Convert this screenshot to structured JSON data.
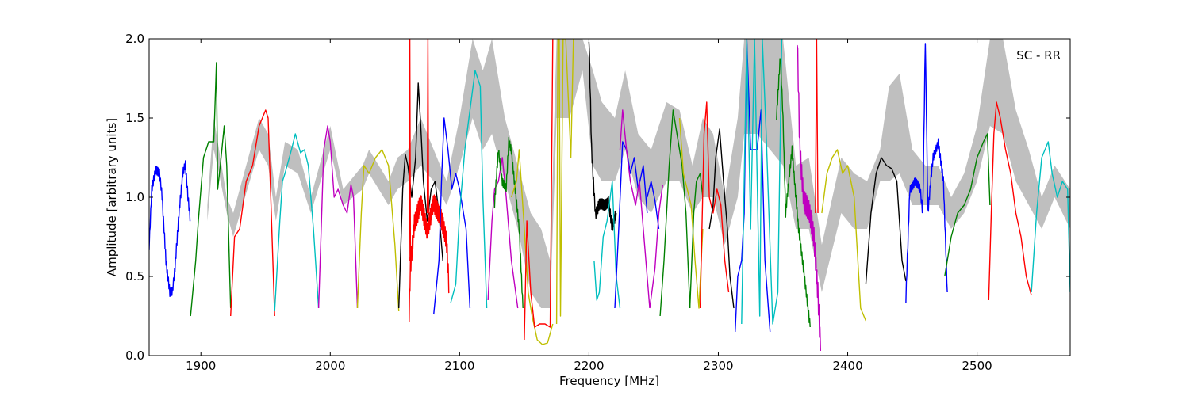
{
  "chart_data": {
    "type": "line",
    "title": "",
    "xlabel": "Frequency [MHz]",
    "ylabel": "Amplitude [arbitrary units]",
    "annotation": "SC - RR",
    "xlim": [
      1860,
      2572
    ],
    "ylim": [
      0.0,
      2.0
    ],
    "xticks": [
      1900,
      2000,
      2100,
      2200,
      2300,
      2400,
      2500
    ],
    "yticks": [
      0.0,
      0.5,
      1.0,
      1.5,
      2.0
    ],
    "xtick_labels": [
      "1900",
      "2000",
      "2100",
      "2200",
      "2300",
      "2400",
      "2500"
    ],
    "ytick_labels": [
      "0.0",
      "0.5",
      "1.0",
      "1.5",
      "2.0"
    ],
    "grid": false,
    "legend": "none",
    "envelope": {
      "color": "#bfbfbf",
      "x": [
        1905,
        1910,
        1914,
        1920,
        1925,
        1945,
        1952,
        1958,
        1965,
        1975,
        1985,
        2000,
        2010,
        2025,
        2030,
        2045,
        2052,
        2060,
        2070,
        2080,
        2090,
        2100,
        2110,
        2118,
        2125,
        2135,
        2145,
        2155,
        2163,
        2170,
        2175,
        2185,
        2195,
        2203,
        2210,
        2220,
        2228,
        2238,
        2248,
        2260,
        2270,
        2280,
        2288,
        2296,
        2305,
        2315,
        2320,
        2330,
        2340,
        2350,
        2360,
        2370,
        2380,
        2395,
        2405,
        2415,
        2425,
        2432,
        2440,
        2450,
        2460,
        2470,
        2480,
        2490,
        2500,
        2510,
        2520,
        2530,
        2540,
        2550,
        2560,
        2572
      ],
      "upper": [
        0.95,
        1.5,
        1.3,
        1.0,
        0.9,
        1.5,
        1.4,
        1.0,
        1.35,
        1.3,
        1.0,
        1.45,
        1.05,
        1.2,
        1.3,
        1.1,
        1.25,
        1.3,
        1.5,
        1.3,
        1.1,
        1.5,
        2.0,
        1.8,
        2.0,
        1.5,
        1.2,
        0.9,
        0.8,
        0.6,
        2.0,
        2.0,
        2.0,
        1.8,
        1.6,
        1.5,
        1.8,
        1.4,
        1.3,
        1.6,
        1.55,
        1.2,
        1.5,
        1.4,
        1.0,
        1.5,
        2.0,
        2.0,
        2.0,
        2.0,
        1.2,
        1.25,
        0.7,
        1.25,
        1.15,
        1.1,
        1.3,
        1.7,
        1.78,
        1.3,
        1.2,
        1.2,
        1.0,
        1.15,
        1.45,
        2.0,
        2.0,
        1.55,
        1.3,
        1.0,
        1.2,
        1.05
      ],
      "lower": [
        0.85,
        1.3,
        1.15,
        0.9,
        0.75,
        1.3,
        1.2,
        0.85,
        1.2,
        1.15,
        0.9,
        1.3,
        0.95,
        1.05,
        1.15,
        0.95,
        1.05,
        1.1,
        1.2,
        1.1,
        0.95,
        1.2,
        1.5,
        1.3,
        1.4,
        1.1,
        0.8,
        0.4,
        0.3,
        0.3,
        1.5,
        1.5,
        1.8,
        1.2,
        1.1,
        1.1,
        1.3,
        1.0,
        0.9,
        1.1,
        1.1,
        0.9,
        1.0,
        1.0,
        0.7,
        1.0,
        1.4,
        1.4,
        1.3,
        1.2,
        0.8,
        0.8,
        0.4,
        0.9,
        0.8,
        0.8,
        1.1,
        1.1,
        1.15,
        0.95,
        0.95,
        0.95,
        0.8,
        0.9,
        1.1,
        1.45,
        1.4,
        1.1,
        0.95,
        0.8,
        1.0,
        0.8
      ]
    },
    "series": [
      {
        "color": "#0000ff",
        "x": [
          1860,
          1862,
          1865,
          1868,
          1870,
          1873,
          1876,
          1878,
          1880,
          1883,
          1886,
          1888,
          1890,
          1892
        ],
        "y": [
          0.68,
          1.05,
          1.18,
          1.15,
          1.0,
          0.6,
          0.4,
          0.4,
          0.55,
          0.9,
          1.15,
          1.2,
          1.0,
          0.85
        ],
        "noise": 0.03
      },
      {
        "color": "#008000",
        "x": [
          1892,
          1896,
          1898,
          1902,
          1906,
          1910,
          1912,
          1913,
          1915,
          1918,
          1920,
          1923
        ],
        "y": [
          0.25,
          0.6,
          0.85,
          1.25,
          1.35,
          1.35,
          1.85,
          1.05,
          1.2,
          1.45,
          1.2,
          0.3
        ]
      },
      {
        "color": "#ff0000",
        "x": [
          1923,
          1926,
          1930,
          1935,
          1940,
          1945,
          1950,
          1952,
          1954,
          1957
        ],
        "y": [
          0.25,
          0.75,
          0.8,
          1.1,
          1.2,
          1.45,
          1.55,
          1.5,
          1.0,
          0.25
        ]
      },
      {
        "color": "#00bfbf",
        "x": [
          1957,
          1961,
          1963,
          1965,
          1970,
          1973,
          1977,
          1980,
          1983,
          1987,
          1991
        ],
        "y": [
          0.28,
          0.85,
          1.1,
          1.15,
          1.3,
          1.4,
          1.28,
          1.3,
          1.2,
          0.8,
          0.3
        ]
      },
      {
        "color": "#bf00bf",
        "x": [
          1991,
          1993,
          1995,
          1998,
          2000,
          2003,
          2006,
          2010,
          2013,
          2016,
          2018,
          2021
        ],
        "y": [
          0.3,
          0.8,
          1.3,
          1.45,
          1.35,
          1.0,
          1.05,
          0.95,
          0.9,
          1.08,
          1.0,
          0.3
        ]
      },
      {
        "color": "#bfbf00",
        "x": [
          2021,
          2024,
          2026,
          2030,
          2035,
          2040,
          2045,
          2050,
          2053
        ],
        "y": [
          0.3,
          0.9,
          1.2,
          1.15,
          1.25,
          1.3,
          1.2,
          0.7,
          0.28
        ]
      },
      {
        "color": "#000000",
        "x": [
          2053,
          2056,
          2058,
          2060,
          2063,
          2066,
          2068,
          2070,
          2072,
          2075,
          2078,
          2081,
          2084,
          2087
        ],
        "y": [
          0.3,
          1.05,
          1.27,
          1.2,
          1.0,
          1.25,
          1.72,
          1.45,
          1.1,
          0.85,
          1.05,
          1.1,
          0.9,
          0.6
        ]
      },
      {
        "color": "#ff0000",
        "x": [
          2061,
          2062,
          2065,
          2070,
          2075,
          2080,
          2085,
          2090,
          2092
        ],
        "y": [
          0.25,
          0.55,
          0.85,
          0.95,
          0.8,
          0.95,
          0.9,
          0.7,
          0.4
        ],
        "noise": 0.07
      },
      {
        "color": "#ff0000",
        "x": [
          2061,
          2061.5,
          2062
        ],
        "y": [
          0.6,
          2.0,
          0.6
        ]
      },
      {
        "color": "#ff0000",
        "x": [
          2075,
          2075.5,
          2076
        ],
        "y": [
          0.9,
          2.0,
          0.9
        ]
      },
      {
        "color": "#0000ff",
        "x": [
          2080,
          2084,
          2086,
          2088,
          2091,
          2094,
          2097,
          2100,
          2105,
          2108
        ],
        "y": [
          0.26,
          0.6,
          1.1,
          1.5,
          1.3,
          1.05,
          1.15,
          1.05,
          0.8,
          0.3
        ]
      },
      {
        "color": "#00bfbf",
        "x": [
          2093,
          2097,
          2100,
          2104,
          2108,
          2112,
          2116,
          2118,
          2121
        ],
        "y": [
          0.33,
          0.45,
          0.9,
          1.3,
          1.55,
          1.8,
          1.7,
          1.0,
          0.3
        ]
      },
      {
        "color": "#bf00bf",
        "x": [
          2122,
          2125,
          2127,
          2130,
          2133,
          2136,
          2140,
          2145
        ],
        "y": [
          0.35,
          0.85,
          1.05,
          1.1,
          1.25,
          1.0,
          0.6,
          0.3
        ]
      },
      {
        "color": "#008000",
        "x": [
          2127,
          2130,
          2133,
          2136,
          2138,
          2140,
          2143,
          2146,
          2149
        ],
        "y": [
          0.95,
          1.3,
          1.1,
          1.05,
          1.35,
          1.3,
          1.05,
          0.8,
          0.3
        ],
        "noise": 0.03
      },
      {
        "color": "#bfbf00",
        "x": [
          2140,
          2144,
          2146,
          2150,
          2153,
          2156,
          2160,
          2164,
          2168,
          2172
        ],
        "y": [
          1.0,
          1.1,
          1.3,
          0.8,
          0.4,
          0.25,
          0.1,
          0.07,
          0.08,
          0.2
        ]
      },
      {
        "color": "#ff0000",
        "x": [
          2150,
          2152,
          2155,
          2158,
          2162,
          2166,
          2170,
          2172
        ],
        "y": [
          0.1,
          0.85,
          0.4,
          0.18,
          0.2,
          0.2,
          0.18,
          2.0
        ]
      },
      {
        "color": "#bfbf00",
        "x": [
          2175,
          2176,
          2177,
          2178,
          2180,
          2182,
          2186,
          2188
        ],
        "y": [
          0.2,
          2.0,
          2.0,
          0.25,
          2.0,
          2.0,
          1.25,
          2.0
        ]
      },
      {
        "color": "#000000",
        "x": [
          2200,
          2202,
          2205,
          2208,
          2212,
          2215,
          2218,
          2221
        ],
        "y": [
          2.0,
          1.3,
          0.9,
          0.95,
          0.95,
          0.98,
          0.8,
          0.9
        ],
        "noise": 0.04
      },
      {
        "color": "#00bfbf",
        "x": [
          2204,
          2206,
          2208,
          2211,
          2214,
          2218,
          2221,
          2224
        ],
        "y": [
          0.6,
          0.35,
          0.4,
          0.75,
          0.85,
          1.1,
          0.5,
          0.3
        ]
      },
      {
        "color": "#0000ff",
        "x": [
          2220,
          2223,
          2226,
          2229,
          2232,
          2235,
          2238,
          2242,
          2245
        ],
        "y": [
          0.3,
          0.8,
          1.35,
          1.3,
          1.15,
          1.25,
          1.05,
          1.2,
          0.9
        ]
      },
      {
        "color": "#bf00bf",
        "x": [
          2224,
          2226,
          2229,
          2232,
          2236,
          2239,
          2243,
          2247
        ],
        "y": [
          1.3,
          1.55,
          1.3,
          1.1,
          0.95,
          1.1,
          0.7,
          0.3
        ]
      },
      {
        "color": "#0000ff",
        "x": [
          2245,
          2248,
          2251,
          2254
        ],
        "y": [
          1.0,
          1.1,
          0.98,
          0.8
        ]
      },
      {
        "color": "#bf00bf",
        "x": [
          2247,
          2251,
          2254,
          2257
        ],
        "y": [
          0.3,
          0.55,
          0.9,
          1.08
        ]
      },
      {
        "color": "#008000",
        "x": [
          2255,
          2258,
          2262,
          2265,
          2268,
          2272,
          2275,
          2278
        ],
        "y": [
          0.25,
          0.6,
          1.2,
          1.55,
          1.4,
          1.2,
          0.9,
          0.3
        ]
      },
      {
        "color": "#bfbf00",
        "x": [
          2270,
          2273,
          2276,
          2279,
          2282,
          2285,
          2288
        ],
        "y": [
          1.5,
          1.15,
          1.05,
          0.95,
          0.6,
          0.3,
          0.8
        ]
      },
      {
        "color": "#008000",
        "x": [
          2278,
          2281,
          2283,
          2286,
          2288
        ],
        "y": [
          0.3,
          0.9,
          1.1,
          1.15,
          1.0
        ]
      },
      {
        "color": "#ff0000",
        "x": [
          2286,
          2289,
          2291,
          2293,
          2296,
          2299,
          2302,
          2305,
          2308
        ],
        "y": [
          0.3,
          1.4,
          1.6,
          1.0,
          0.9,
          1.05,
          0.95,
          0.6,
          0.4
        ]
      },
      {
        "color": "#000000",
        "x": [
          2293,
          2296,
          2298,
          2301,
          2304,
          2307,
          2309,
          2312
        ],
        "y": [
          0.8,
          0.95,
          1.25,
          1.43,
          1.1,
          0.8,
          0.5,
          0.3
        ]
      },
      {
        "color": "#0000ff",
        "x": [
          2313,
          2315,
          2318,
          2320,
          2322,
          2325,
          2330,
          2333,
          2336,
          2340
        ],
        "y": [
          0.15,
          0.5,
          0.6,
          0.9,
          2.0,
          1.3,
          1.3,
          1.55,
          0.6,
          0.15
        ]
      },
      {
        "color": "#00bfbf",
        "x": [
          2318,
          2322,
          2325,
          2328,
          2332,
          2334,
          2337,
          2342,
          2346,
          2349
        ],
        "y": [
          0.2,
          2.0,
          0.8,
          2.0,
          0.25,
          2.0,
          1.4,
          0.2,
          0.4,
          2.0
        ]
      },
      {
        "color": "#008000",
        "x": [
          2345,
          2348,
          2350,
          2352,
          2357,
          2362,
          2365,
          2368,
          2371
        ],
        "y": [
          1.5,
          1.9,
          1.5,
          0.9,
          1.3,
          0.8,
          0.6,
          0.4,
          0.18
        ],
        "noise": 0.03
      },
      {
        "color": "#bf00bf",
        "x": [
          2361,
          2363,
          2366,
          2370,
          2374,
          2377,
          2379
        ],
        "y": [
          2.0,
          1.3,
          1.0,
          0.9,
          0.75,
          0.4,
          0.03
        ],
        "noise": 0.08
      },
      {
        "color": "#ff0000",
        "x": [
          2375,
          2376,
          2377
        ],
        "y": [
          0.9,
          2.0,
          0.9
        ]
      },
      {
        "color": "#bfbf00",
        "x": [
          2380,
          2384,
          2388,
          2392,
          2396,
          2400,
          2405,
          2410,
          2414
        ],
        "y": [
          0.9,
          1.15,
          1.25,
          1.3,
          1.15,
          1.2,
          1.0,
          0.3,
          0.22
        ]
      },
      {
        "color": "#000000",
        "x": [
          2414,
          2418,
          2422,
          2426,
          2430,
          2434,
          2438,
          2442,
          2445
        ],
        "y": [
          0.45,
          0.9,
          1.15,
          1.25,
          1.2,
          1.18,
          1.1,
          0.6,
          0.47
        ]
      },
      {
        "color": "#0000ff",
        "x": [
          2445,
          2448,
          2452,
          2456,
          2458,
          2460,
          2462,
          2466,
          2470,
          2474,
          2477
        ],
        "y": [
          0.35,
          1.05,
          1.1,
          1.05,
          0.9,
          2.0,
          0.9,
          1.25,
          1.35,
          1.1,
          0.4
        ],
        "noise": 0.03
      },
      {
        "color": "#008000",
        "x": [
          2475,
          2480,
          2485,
          2490,
          2495,
          2500,
          2505,
          2508,
          2510
        ],
        "y": [
          0.5,
          0.75,
          0.9,
          0.95,
          1.05,
          1.25,
          1.35,
          1.4,
          0.95
        ]
      },
      {
        "color": "#ff0000",
        "x": [
          2509,
          2511,
          2513,
          2515,
          2518,
          2522,
          2526,
          2530,
          2534,
          2538,
          2542
        ],
        "y": [
          0.35,
          0.9,
          1.4,
          1.6,
          1.5,
          1.3,
          1.15,
          0.9,
          0.75,
          0.5,
          0.38
        ]
      },
      {
        "color": "#00bfbf",
        "x": [
          2542,
          2546,
          2550,
          2555,
          2558,
          2562,
          2566,
          2570,
          2572
        ],
        "y": [
          0.4,
          0.9,
          1.25,
          1.35,
          1.15,
          1.0,
          1.1,
          1.05,
          0.4
        ]
      }
    ]
  }
}
